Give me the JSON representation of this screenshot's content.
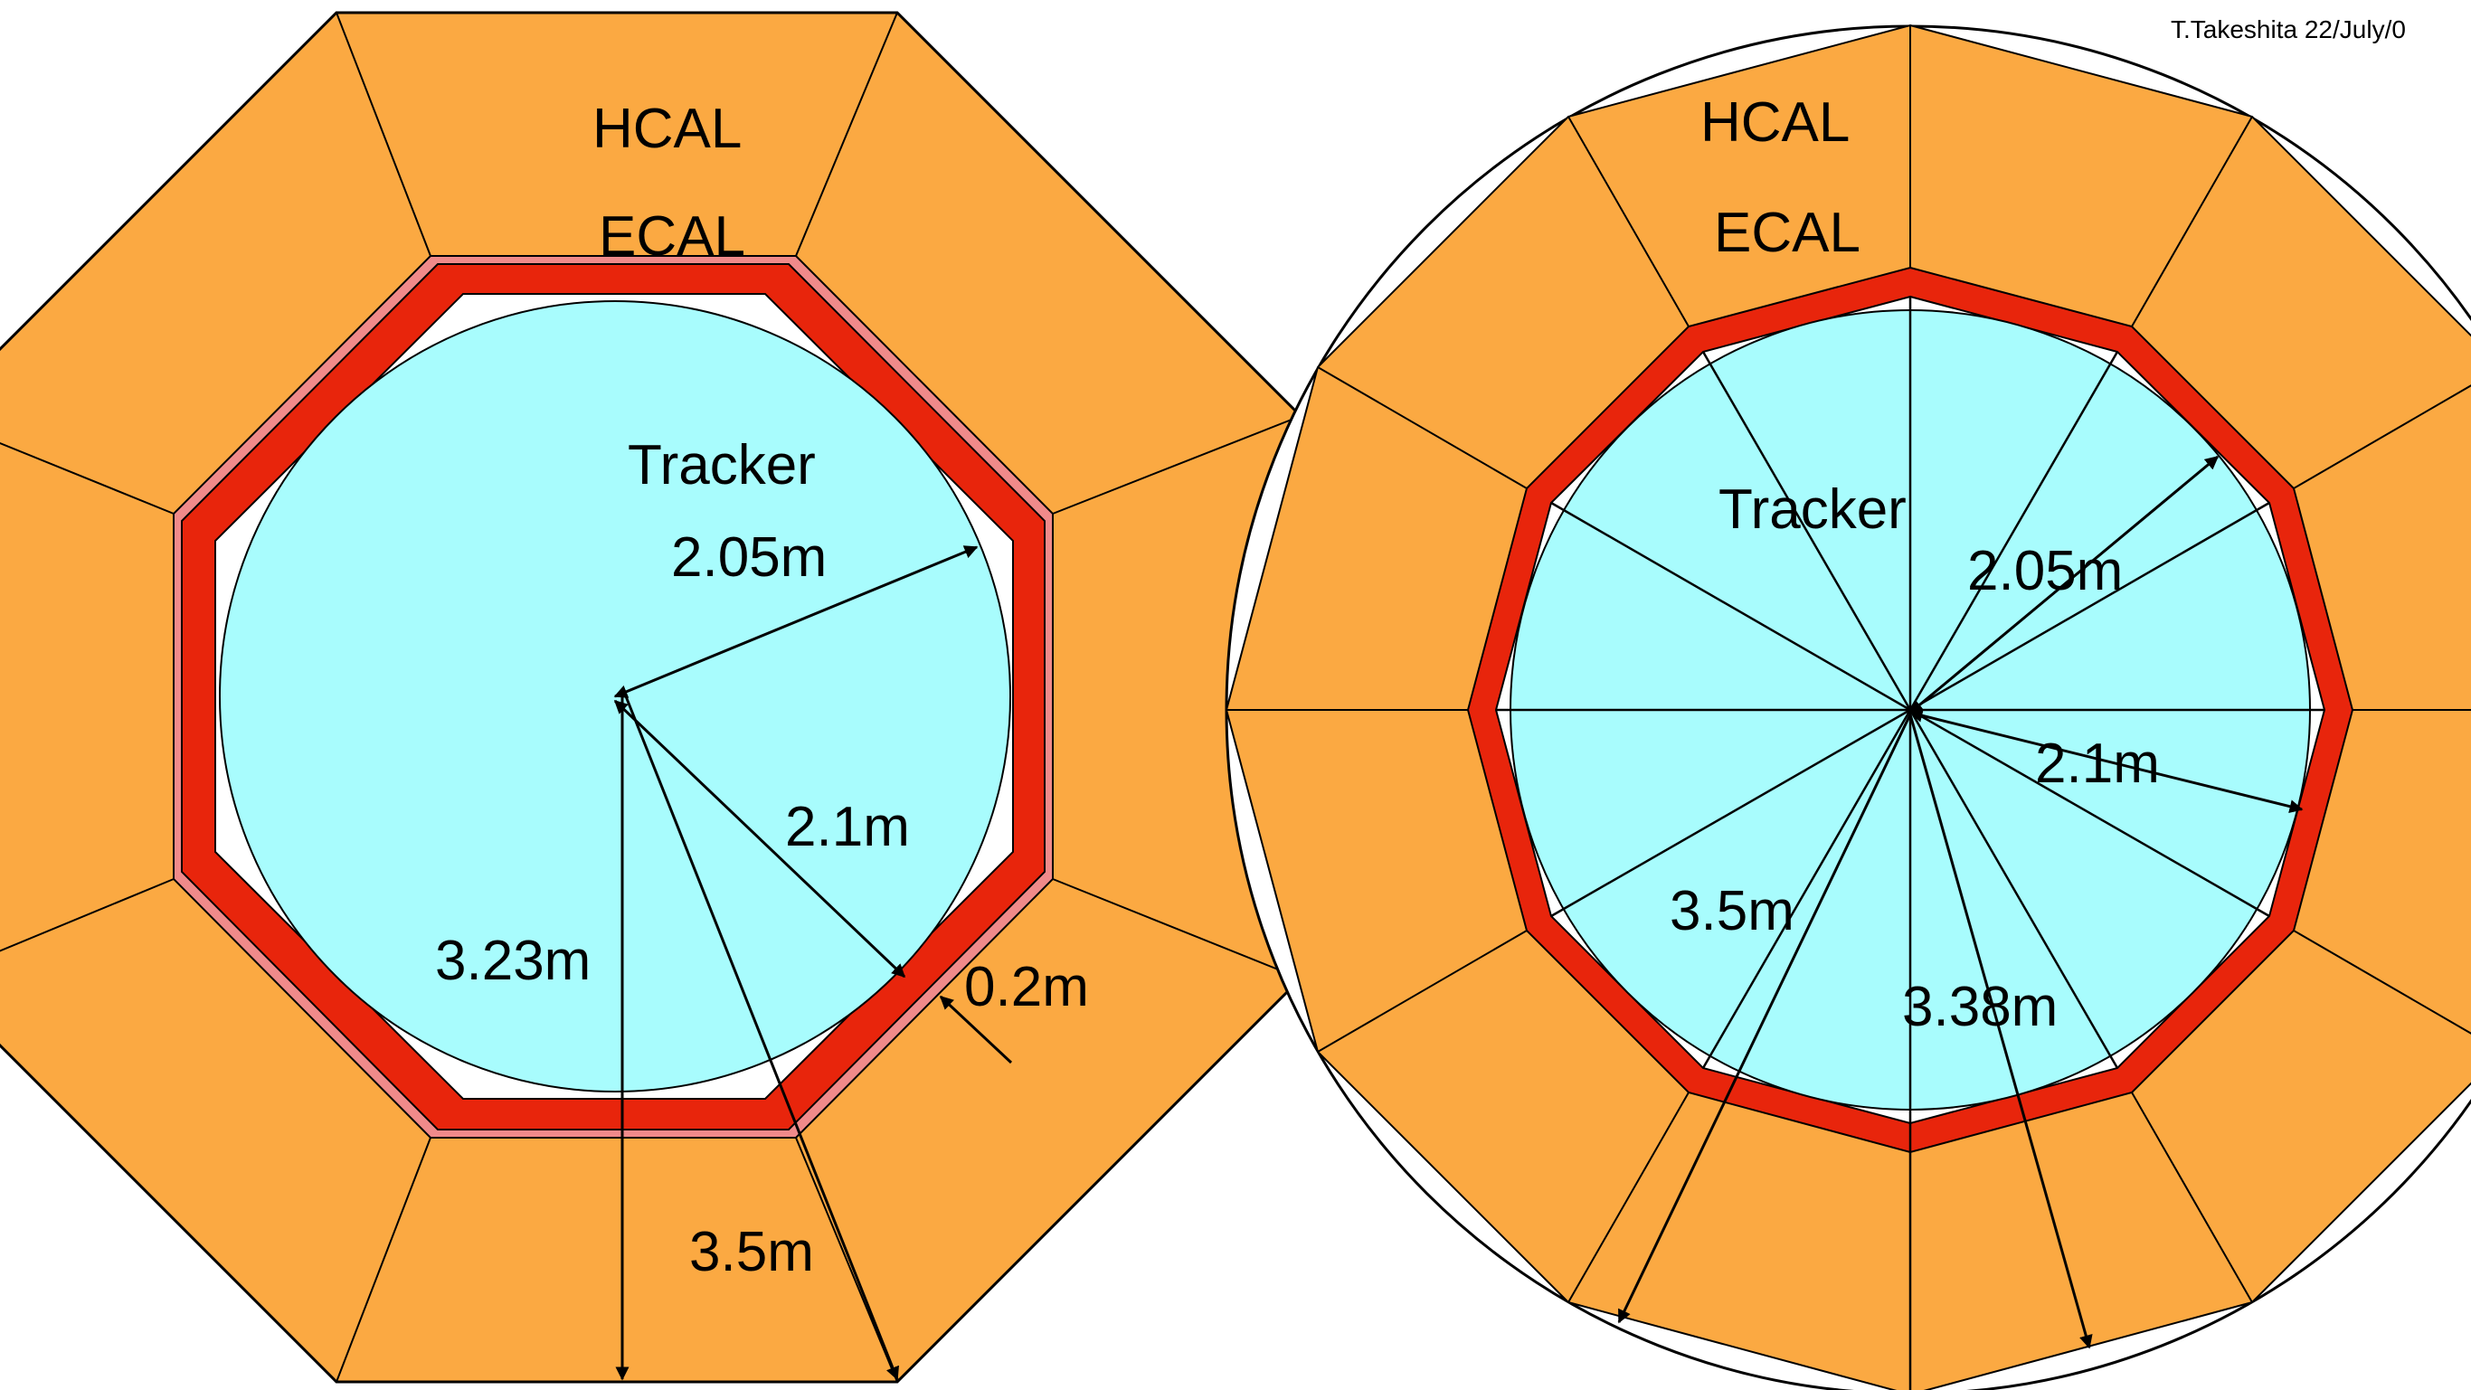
{
  "credit": "T.Takeshita 22/July/0",
  "left": {
    "labels": {
      "hcal": "HCAL",
      "ecal": "ECAL",
      "tracker": "Tracker",
      "r_tracker": "2.05m",
      "r_ecal_inner": "2.1m",
      "r_ecal_thickness": "0.2m",
      "r_hcal_inner": "3.23m",
      "r_hcal_outer": "3.5m"
    }
  },
  "right": {
    "labels": {
      "hcal": "HCAL",
      "ecal": "ECAL",
      "tracker": "Tracker",
      "r_tracker": "2.05m",
      "r_ecal_inner": "2.1m",
      "r_hcal_outer": "3.5m",
      "r_hcal_inner": "3.38m"
    }
  },
  "colors": {
    "hcal": "#FBA942",
    "ecal": "#E8250C",
    "ecal_side": "#F08A8A",
    "tracker": "#A8FCFD",
    "gap": "#FFFFFF",
    "line": "#000000"
  }
}
